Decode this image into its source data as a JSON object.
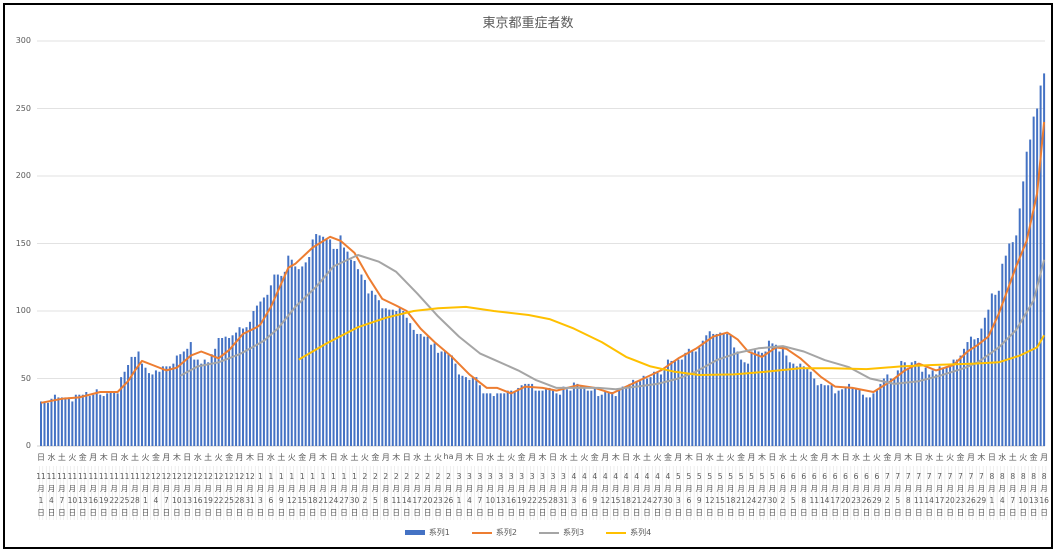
{
  "chart_data": {
    "type": "bar+line",
    "title": "東京都重症者数",
    "ylim": [
      0,
      300
    ],
    "y_ticks": [
      "0",
      "50",
      "100",
      "150",
      "200",
      "250",
      "300"
    ],
    "grid": true,
    "legend_position": "bottom",
    "start_date": "2020-11-01",
    "end_date": "2021-08-16",
    "x_tick_labels": [
      "11月1日",
      "11月4日",
      "11月7日",
      "11月10日",
      "11月13日",
      "11月16日",
      "11月19日",
      "11月22日",
      "11月25日",
      "11月28日",
      "12月1日",
      "12月4日",
      "12月7日",
      "12月10日",
      "12月13日",
      "12月16日",
      "12月19日",
      "12月22日",
      "12月25日",
      "12月28日",
      "12月31日",
      "1月3日",
      "1月6日",
      "1月9日",
      "1月12日",
      "1月15日",
      "1月18日",
      "1月21日",
      "1月24日",
      "1月27日",
      "1月30日",
      "2月2日",
      "2月5日",
      "2月8日",
      "2月11日",
      "2月14日",
      "2月17日",
      "2月20日",
      "2月23日",
      "2月26日",
      "3月1日",
      "3月4日",
      "3月7日",
      "3月10日",
      "3月13日",
      "3月16日",
      "3月19日",
      "3月22日",
      "3月25日",
      "3月28日",
      "3月31日",
      "4月3日",
      "4月6日",
      "4月9日",
      "4月12日",
      "4月15日",
      "4月18日",
      "4月21日",
      "4月24日",
      "4月27日",
      "4月30日",
      "5月3日",
      "5月6日",
      "5月9日",
      "5月12日",
      "5月15日",
      "5月18日",
      "5月21日",
      "5月24日",
      "5月27日",
      "5月30日",
      "6月2日",
      "6月5日",
      "6月8日",
      "6月11日",
      "6月14日",
      "6月17日",
      "6月20日",
      "6月23日",
      "6月26日",
      "6月29日",
      "7月2日",
      "7月5日",
      "7月8日",
      "7月11日",
      "7月14日",
      "7月17日",
      "7月20日",
      "7月23日",
      "7月26日",
      "7月29日",
      "8月1日",
      "8月4日",
      "8月7日",
      "8月10日",
      "8月13日",
      "8月16日"
    ],
    "x_tick_weekdays": [
      "日",
      "水",
      "土",
      "火",
      "金",
      "月",
      "木",
      "日",
      "水",
      "土",
      "火",
      "金",
      "月",
      "木",
      "日",
      "水",
      "土",
      "火",
      "金",
      "月",
      "木",
      "日",
      "水",
      "土",
      "火",
      "金",
      "月",
      "木",
      "日",
      "水",
      "土",
      "火",
      "金",
      "月",
      "木",
      "日",
      "水",
      "土",
      "火",
      "ha",
      "月",
      "木",
      "日",
      "水",
      "土",
      "火",
      "金",
      "月",
      "木",
      "日",
      "水",
      "土",
      "火",
      "金",
      "月",
      "木",
      "日",
      "水",
      "土",
      "火",
      "金",
      "月",
      "木",
      "日",
      "水",
      "土",
      "火",
      "金",
      "月",
      "木",
      "日",
      "水",
      "土",
      "火",
      "金",
      "月",
      "木",
      "日",
      "水",
      "土",
      "火",
      "金",
      "月",
      "木",
      "日",
      "水",
      "土",
      "火",
      "金",
      "月",
      "木",
      "日",
      "水",
      "土",
      "火",
      "金",
      "月"
    ],
    "series": [
      {
        "name": "系列1",
        "type": "bar",
        "color": "#4472C4",
        "values": [
          33,
          32,
          32,
          35,
          38,
          36,
          36,
          36,
          36,
          33,
          38,
          38,
          38,
          40,
          37,
          38,
          42,
          38,
          37,
          39,
          40,
          40,
          39,
          51,
          55,
          60,
          66,
          66,
          70,
          61,
          58,
          54,
          53,
          56,
          55,
          59,
          59,
          59,
          61,
          67,
          68,
          70,
          72,
          77,
          64,
          64,
          61,
          64,
          62,
          68,
          72,
          80,
          80,
          81,
          80,
          82,
          84,
          88,
          87,
          88,
          92,
          100,
          104,
          107,
          110,
          112,
          119,
          127,
          127,
          126,
          129,
          141,
          138,
          133,
          131,
          133,
          136,
          140,
          153,
          157,
          156,
          155,
          153,
          153,
          146,
          146,
          156,
          147,
          144,
          138,
          137,
          131,
          127,
          123,
          113,
          115,
          112,
          108,
          102,
          102,
          101,
          101,
          100,
          102,
          100,
          95,
          91,
          86,
          83,
          83,
          81,
          81,
          75,
          76,
          69,
          70,
          70,
          68,
          67,
          61,
          53,
          52,
          51,
          49,
          51,
          51,
          45,
          39,
          39,
          39,
          37,
          39,
          39,
          39,
          41,
          41,
          40,
          43,
          45,
          46,
          46,
          46,
          41,
          41,
          41,
          43,
          43,
          41,
          39,
          38,
          44,
          42,
          41,
          47,
          46,
          44,
          43,
          41,
          41,
          43,
          37,
          38,
          40,
          40,
          40,
          37,
          41,
          44,
          44,
          46,
          49,
          48,
          48,
          52,
          50,
          51,
          55,
          55,
          53,
          56,
          64,
          63,
          63,
          64,
          64,
          69,
          72,
          70,
          70,
          73,
          78,
          82,
          85,
          83,
          83,
          84,
          83,
          83,
          82,
          73,
          70,
          64,
          62,
          61,
          70,
          71,
          70,
          69,
          70,
          78,
          76,
          75,
          70,
          74,
          67,
          62,
          61,
          59,
          61,
          59,
          57,
          55,
          50,
          45,
          46,
          45,
          45,
          45,
          39,
          41,
          42,
          43,
          46,
          43,
          42,
          42,
          38,
          36,
          36,
          39,
          42,
          46,
          50,
          53,
          50,
          50,
          56,
          63,
          62,
          58,
          62,
          63,
          59,
          55,
          58,
          53,
          56,
          53,
          59,
          58,
          59,
          59,
          64,
          64,
          67,
          72,
          77,
          81,
          79,
          80,
          87,
          95,
          101,
          113,
          112,
          115,
          135,
          141,
          150,
          151,
          156,
          176,
          196,
          218,
          227,
          244,
          250,
          267,
          276
        ]
      },
      {
        "name": "系列2",
        "type": "line",
        "color": "#ED7D31",
        "points": [
          [
            "2020-11-01",
            32
          ],
          [
            "2020-11-07",
            35
          ],
          [
            "2020-11-12",
            36
          ],
          [
            "2020-11-18",
            40
          ],
          [
            "2020-11-23",
            40
          ],
          [
            "2020-11-26",
            48
          ],
          [
            "2020-11-28",
            56
          ],
          [
            "2020-11-30",
            63
          ],
          [
            "2020-12-03",
            60
          ],
          [
            "2020-12-07",
            56
          ],
          [
            "2020-12-10",
            58
          ],
          [
            "2020-12-14",
            67
          ],
          [
            "2020-12-17",
            70
          ],
          [
            "2020-12-19",
            68
          ],
          [
            "2020-12-22",
            65
          ],
          [
            "2020-12-25",
            71
          ],
          [
            "2020-12-29",
            83
          ],
          [
            "2021-01-02",
            88
          ],
          [
            "2021-01-03",
            90
          ],
          [
            "2021-01-06",
            103
          ],
          [
            "2021-01-11",
            132
          ],
          [
            "2021-01-13",
            135
          ],
          [
            "2021-01-18",
            147
          ],
          [
            "2021-01-23",
            155
          ],
          [
            "2021-01-26",
            152
          ],
          [
            "2021-01-30",
            143
          ],
          [
            "2021-02-03",
            125
          ],
          [
            "2021-02-07",
            109
          ],
          [
            "2021-02-11",
            104
          ],
          [
            "2021-02-14",
            100
          ],
          [
            "2021-02-18",
            87
          ],
          [
            "2021-02-22",
            77
          ],
          [
            "2021-02-27",
            66
          ],
          [
            "2021-03-04",
            53
          ],
          [
            "2021-03-09",
            43
          ],
          [
            "2021-03-12",
            43
          ],
          [
            "2021-03-16",
            39
          ],
          [
            "2021-03-20",
            44
          ],
          [
            "2021-03-25",
            43
          ],
          [
            "2021-03-29",
            41
          ],
          [
            "2021-04-04",
            45
          ],
          [
            "2021-04-09",
            43
          ],
          [
            "2021-04-14",
            39
          ],
          [
            "2021-04-18",
            44
          ],
          [
            "2021-04-23",
            50
          ],
          [
            "2021-04-28",
            56
          ],
          [
            "2021-05-03",
            65
          ],
          [
            "2021-05-08",
            72
          ],
          [
            "2021-05-13",
            81
          ],
          [
            "2021-05-17",
            84
          ],
          [
            "2021-05-20",
            79
          ],
          [
            "2021-05-23",
            70
          ],
          [
            "2021-05-27",
            66
          ],
          [
            "2021-05-31",
            73
          ],
          [
            "2021-06-03",
            72
          ],
          [
            "2021-06-07",
            65
          ],
          [
            "2021-06-13",
            51
          ],
          [
            "2021-06-17",
            44
          ],
          [
            "2021-06-22",
            43
          ],
          [
            "2021-06-28",
            40
          ],
          [
            "2021-07-03",
            48
          ],
          [
            "2021-07-07",
            56
          ],
          [
            "2021-07-11",
            61
          ],
          [
            "2021-07-16",
            56
          ],
          [
            "2021-07-21",
            60
          ],
          [
            "2021-07-25",
            70
          ],
          [
            "2021-07-28",
            75
          ],
          [
            "2021-07-31",
            81
          ],
          [
            "2021-08-03",
            98
          ],
          [
            "2021-08-08",
            133
          ],
          [
            "2021-08-11",
            152
          ],
          [
            "2021-08-14",
            187
          ],
          [
            "2021-08-16",
            240
          ]
        ]
      },
      {
        "name": "系列3",
        "type": "line",
        "color": "#A5A5A5",
        "points": [
          [
            "2020-12-11",
            52
          ],
          [
            "2020-12-16",
            59
          ],
          [
            "2020-12-22",
            62
          ],
          [
            "2020-12-28",
            68
          ],
          [
            "2021-01-02",
            75
          ],
          [
            "2021-01-04",
            78
          ],
          [
            "2021-01-08",
            87
          ],
          [
            "2021-01-13",
            103
          ],
          [
            "2021-01-19",
            118
          ],
          [
            "2021-01-24",
            133
          ],
          [
            "2021-01-31",
            141.5
          ],
          [
            "2021-02-06",
            136.5
          ],
          [
            "2021-02-11",
            129
          ],
          [
            "2021-02-17",
            113
          ],
          [
            "2021-02-23",
            96
          ],
          [
            "2021-03-01",
            81
          ],
          [
            "2021-03-07",
            68.6
          ],
          [
            "2021-03-11",
            64
          ],
          [
            "2021-03-18",
            56
          ],
          [
            "2021-03-23",
            49
          ],
          [
            "2021-03-29",
            43
          ],
          [
            "2021-04-04",
            43
          ],
          [
            "2021-04-10",
            43
          ],
          [
            "2021-04-15",
            42
          ],
          [
            "2021-04-21",
            44
          ],
          [
            "2021-04-27",
            46
          ],
          [
            "2021-05-03",
            50
          ],
          [
            "2021-05-08",
            55
          ],
          [
            "2021-05-14",
            63.6
          ],
          [
            "2021-05-20",
            69
          ],
          [
            "2021-05-26",
            72.4
          ],
          [
            "2021-06-02",
            74
          ],
          [
            "2021-06-08",
            70
          ],
          [
            "2021-06-14",
            63.6
          ],
          [
            "2021-06-21",
            58.4
          ],
          [
            "2021-06-27",
            50
          ],
          [
            "2021-07-04",
            46
          ],
          [
            "2021-07-11",
            48
          ],
          [
            "2021-07-17",
            52
          ],
          [
            "2021-07-24",
            57.6
          ],
          [
            "2021-07-28",
            62
          ],
          [
            "2021-08-03",
            73
          ],
          [
            "2021-08-08",
            86
          ],
          [
            "2021-08-13",
            108
          ],
          [
            "2021-08-16",
            138
          ]
        ]
      },
      {
        "name": "系列4",
        "type": "line",
        "color": "#FFC000",
        "points": [
          [
            "2021-01-14",
            64
          ],
          [
            "2021-01-22",
            76
          ],
          [
            "2021-01-31",
            88
          ],
          [
            "2021-02-08",
            95
          ],
          [
            "2021-02-16",
            100
          ],
          [
            "2021-02-23",
            102
          ],
          [
            "2021-03-03",
            103
          ],
          [
            "2021-03-11",
            100
          ],
          [
            "2021-03-21",
            97
          ],
          [
            "2021-03-27",
            94
          ],
          [
            "2021-04-03",
            87
          ],
          [
            "2021-04-11",
            77
          ],
          [
            "2021-04-18",
            66
          ],
          [
            "2021-04-25",
            59
          ],
          [
            "2021-05-02",
            55
          ],
          [
            "2021-05-09",
            52.6
          ],
          [
            "2021-05-19",
            53
          ],
          [
            "2021-05-28",
            55
          ],
          [
            "2021-06-07",
            57.6
          ],
          [
            "2021-06-16",
            57.6
          ],
          [
            "2021-06-26",
            57
          ],
          [
            "2021-07-06",
            59
          ],
          [
            "2021-07-15",
            60
          ],
          [
            "2021-07-27",
            61
          ],
          [
            "2021-08-03",
            62
          ],
          [
            "2021-08-09",
            67
          ],
          [
            "2021-08-14",
            73
          ],
          [
            "2021-08-16",
            82
          ]
        ]
      }
    ]
  }
}
